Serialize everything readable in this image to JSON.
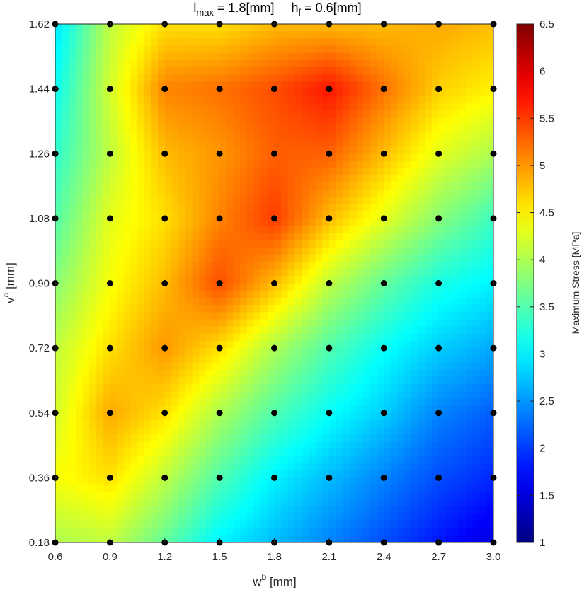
{
  "chart_data": {
    "type": "heatmap",
    "title": {
      "part1_main": "l",
      "part1_sub": "max",
      "part1_rest": " = 1.8[mm]",
      "part2_main": "h",
      "part2_sub": "f",
      "part2_rest": " = 0.6[mm]"
    },
    "xlabel": {
      "main": "w",
      "sup": "b",
      "rest": " [mm]"
    },
    "ylabel": {
      "main": "v",
      "sup": "a",
      "rest": " [mm]"
    },
    "colorbar_label": "Maximum Stress [MPa]",
    "x_ticks": [
      "0.6",
      "0.9",
      "1.2",
      "1.5",
      "1.8",
      "2.1",
      "2.4",
      "2.7",
      "3.0"
    ],
    "y_ticks": [
      "0.18",
      "0.36",
      "0.54",
      "0.72",
      "0.90",
      "1.08",
      "1.26",
      "1.44",
      "1.62"
    ],
    "colorbar_ticks": [
      "1",
      "1.5",
      "2",
      "2.5",
      "3",
      "3.5",
      "4",
      "4.5",
      "5",
      "5.5",
      "6",
      "6.5"
    ],
    "colormap": "jet",
    "clim": [
      1,
      6.5
    ],
    "xlim": [
      0.6,
      3.0
    ],
    "ylim": [
      0.18,
      1.62
    ],
    "x": [
      0.6,
      0.9,
      1.2,
      1.5,
      1.8,
      2.1,
      2.4,
      2.7,
      3.0
    ],
    "y": [
      0.18,
      0.36,
      0.54,
      0.72,
      0.9,
      1.08,
      1.26,
      1.44,
      1.62
    ],
    "z": [
      [
        4.0,
        4.1,
        3.6,
        3.0,
        2.7,
        2.4,
        2.1,
        1.8,
        1.5
      ],
      [
        4.4,
        4.6,
        4.1,
        3.5,
        3.0,
        2.7,
        2.4,
        2.1,
        1.9
      ],
      [
        4.2,
        4.9,
        4.6,
        4.0,
        3.5,
        3.1,
        2.8,
        2.4,
        2.2
      ],
      [
        4.1,
        4.6,
        5.0,
        4.6,
        4.0,
        3.5,
        3.1,
        2.8,
        2.6
      ],
      [
        3.8,
        4.4,
        4.8,
        5.4,
        4.8,
        4.1,
        3.6,
        3.2,
        3.0
      ],
      [
        3.5,
        4.3,
        4.6,
        5.1,
        5.5,
        4.8,
        4.3,
        3.8,
        3.4
      ],
      [
        3.3,
        4.1,
        4.8,
        5.0,
        5.3,
        5.3,
        4.8,
        4.3,
        4.0
      ],
      [
        3.1,
        4.2,
        5.1,
        5.2,
        5.4,
        5.7,
        5.2,
        4.7,
        4.5
      ],
      [
        2.9,
        4.1,
        4.6,
        4.6,
        4.8,
        4.8,
        4.8,
        4.9,
        4.8
      ]
    ],
    "sample_points": "all grid intersections (9 x 9)",
    "grid": false
  }
}
